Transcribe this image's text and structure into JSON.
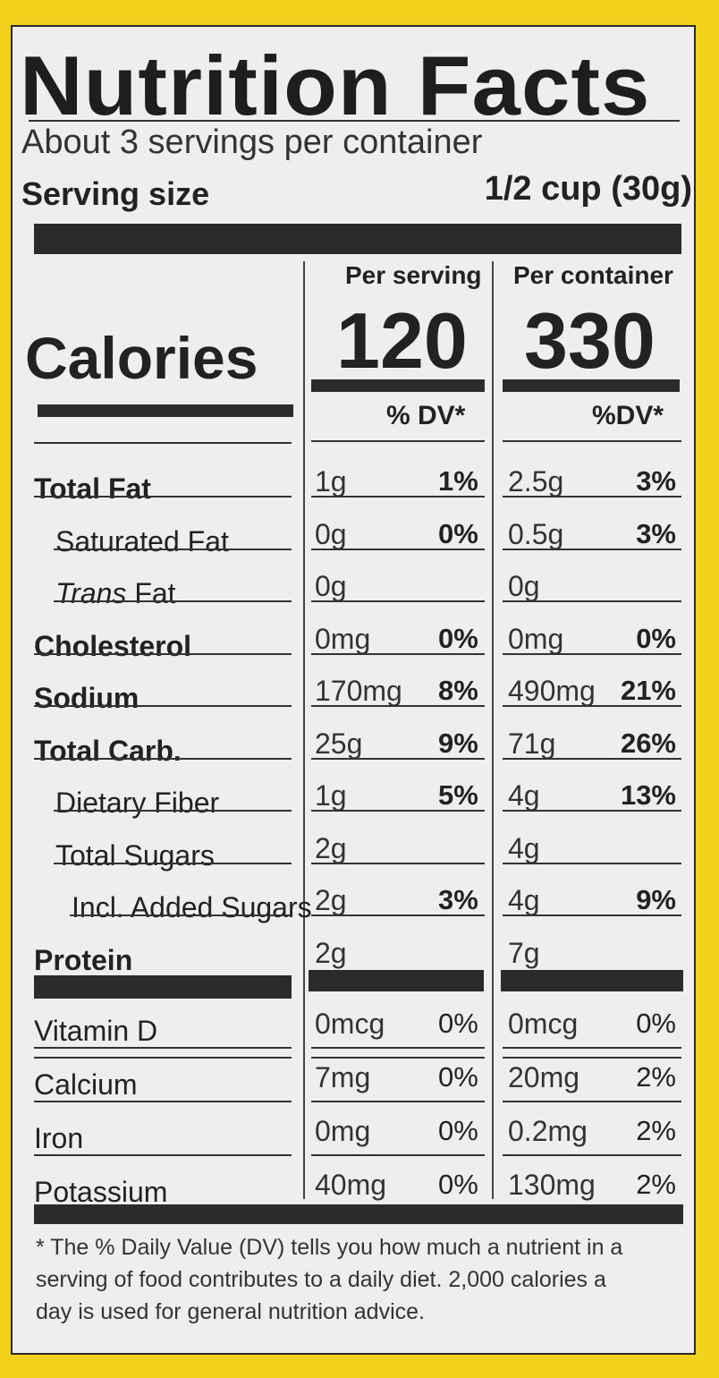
{
  "title": "Nutrition Facts",
  "servings_per_container": "About 3 servings per container",
  "serving_size_label": "Serving size",
  "serving_size_value": "1/2 cup (30g)",
  "col_per_serving": "Per serving",
  "col_per_container": "Per container",
  "calories_label": "Calories",
  "calories_serving": "120",
  "calories_container": "330",
  "dv_header_serving": "% DV*",
  "dv_header_container": "%DV*",
  "nutrients": [
    {
      "name": "Total Fat",
      "s_amt": "1g",
      "s_dv": "1%",
      "c_amt": "2.5g",
      "c_dv": "3%"
    },
    {
      "name": "Saturated Fat",
      "s_amt": "0g",
      "s_dv": "0%",
      "c_amt": "0.5g",
      "c_dv": "3%"
    },
    {
      "name_italic": "Trans",
      "name": " Fat",
      "s_amt": "0g",
      "s_dv": "",
      "c_amt": "0g",
      "c_dv": ""
    },
    {
      "name": "Cholesterol",
      "s_amt": "0mg",
      "s_dv": "0%",
      "c_amt": "0mg",
      "c_dv": "0%"
    },
    {
      "name": "Sodium",
      "s_amt": "170mg",
      "s_dv": "8%",
      "c_amt": "490mg",
      "c_dv": "21%"
    },
    {
      "name": "Total Carb.",
      "s_amt": "25g",
      "s_dv": "9%",
      "c_amt": "71g",
      "c_dv": "26%"
    },
    {
      "name": "Dietary Fiber",
      "s_amt": "1g",
      "s_dv": "5%",
      "c_amt": "4g",
      "c_dv": "13%"
    },
    {
      "name": "Total Sugars",
      "s_amt": "2g",
      "s_dv": "",
      "c_amt": "4g",
      "c_dv": ""
    },
    {
      "name": "Incl. Added Sugars",
      "s_amt": "2g",
      "s_dv": "3%",
      "c_amt": "4g",
      "c_dv": "9%"
    },
    {
      "name": "Protein",
      "s_amt": "2g",
      "s_dv": "",
      "c_amt": "7g",
      "c_dv": ""
    }
  ],
  "vitamins": [
    {
      "name": "Vitamin D",
      "s_amt": "0mcg",
      "s_dv": "0%",
      "c_amt": "0mcg",
      "c_dv": "0%"
    },
    {
      "name": "Calcium",
      "s_amt": "7mg",
      "s_dv": "0%",
      "c_amt": "20mg",
      "c_dv": "2%"
    },
    {
      "name": "Iron",
      "s_amt": "0mg",
      "s_dv": "0%",
      "c_amt": "0.2mg",
      "c_dv": "2%"
    },
    {
      "name": "Potassium",
      "s_amt": "40mg",
      "s_dv": "0%",
      "c_amt": "130mg",
      "c_dv": "2%"
    }
  ],
  "footnote": "* The % Daily Value (DV) tells you how much a nutrient in a serving of food contributes to a daily diet. 2,000 calories a day is used for general nutrition advice."
}
